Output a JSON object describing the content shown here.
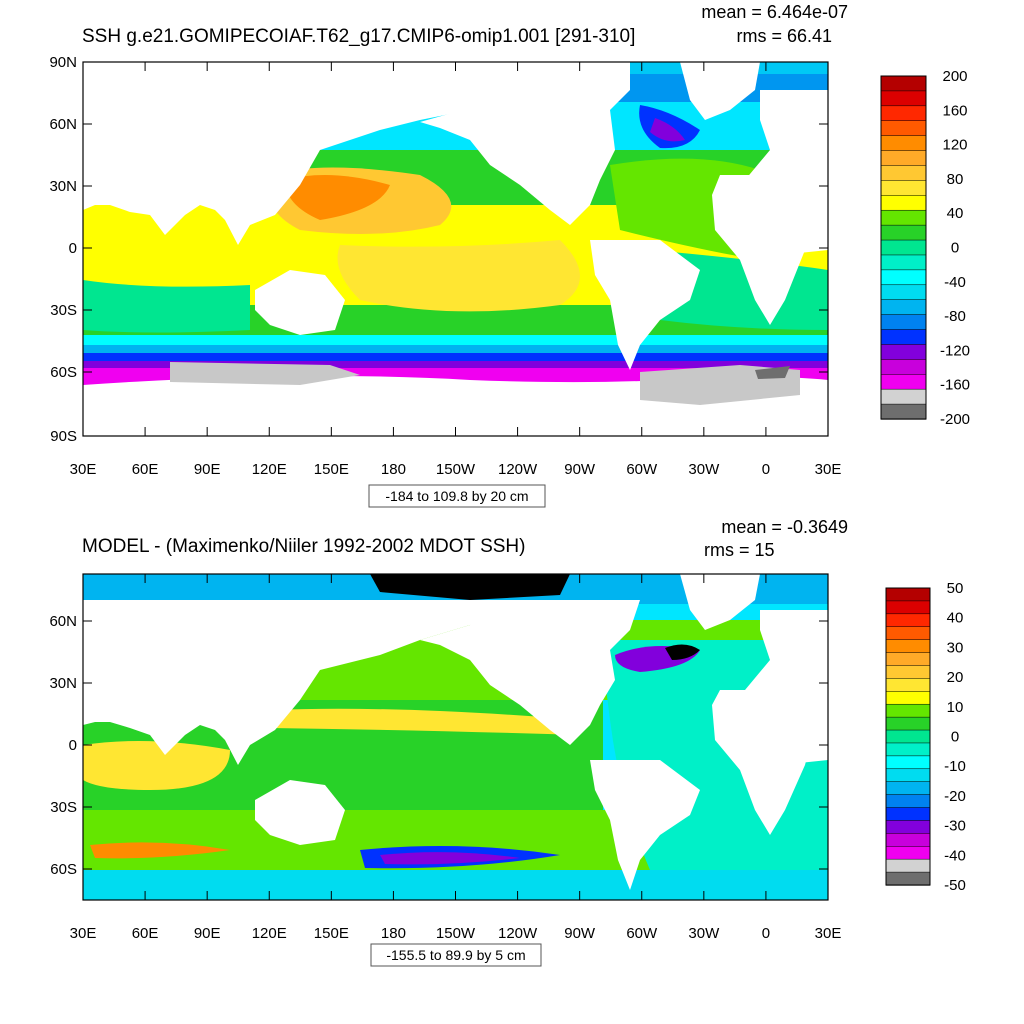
{
  "panels": [
    {
      "title": "SSH g.e21.GOMIPECOIAF.T62_g17.CMIP6-omip1.001 [291-310]",
      "mean_text": "mean = 6.464e-07",
      "rms_text": "rms = 66.41",
      "range_text": "-184 to 109.8 by 20 cm",
      "lat_ticks": [
        "90N",
        "60N",
        "30N",
        "0",
        "30S",
        "60S",
        "90S"
      ],
      "lon_ticks": [
        "30E",
        "60E",
        "90E",
        "120E",
        "150E",
        "180",
        "150W",
        "120W",
        "90W",
        "60W",
        "30W",
        "0",
        "30E"
      ],
      "colorbar": {
        "labels": [
          "200",
          "160",
          "120",
          "80",
          "40",
          "0",
          "-40",
          "-80",
          "-120",
          "-160",
          "-200"
        ],
        "colors": [
          "#b40000",
          "#dc0000",
          "#ff2800",
          "#ff5a00",
          "#ff8c00",
          "#ffaa28",
          "#ffc832",
          "#ffe632",
          "#ffff00",
          "#64e600",
          "#28d228",
          "#00e690",
          "#00f0c8",
          "#00ffff",
          "#00dcf0",
          "#00b4f0",
          "#0082f0",
          "#0032ff",
          "#8200dc",
          "#c800dc",
          "#f000f0",
          "#d2d2d2",
          "#6e6e6e"
        ]
      }
    },
    {
      "title": "MODEL - (Maximenko/Niiler 1992-2002 MDOT SSH)",
      "mean_text": "mean = -0.3649",
      "rms_text": "rms = 15",
      "range_text": "-155.5 to 89.9 by 5 cm",
      "lat_ticks": [
        "60N",
        "30N",
        "0",
        "30S",
        "60S"
      ],
      "lon_ticks": [
        "30E",
        "60E",
        "90E",
        "120E",
        "150E",
        "180",
        "150W",
        "120W",
        "90W",
        "60W",
        "30W",
        "0",
        "30E"
      ],
      "colorbar": {
        "labels": [
          "50",
          "40",
          "30",
          "20",
          "10",
          "0",
          "-10",
          "-20",
          "-30",
          "-40",
          "-50"
        ],
        "colors": [
          "#b40000",
          "#dc0000",
          "#ff2800",
          "#ff5a00",
          "#ff8c00",
          "#ffaa28",
          "#ffc832",
          "#ffe632",
          "#ffff00",
          "#64e600",
          "#28d228",
          "#00e690",
          "#00f0c8",
          "#00ffff",
          "#00dcf0",
          "#00b4f0",
          "#0082f0",
          "#0032ff",
          "#8200dc",
          "#c800dc",
          "#f000f0",
          "#d2d2d2",
          "#6e6e6e"
        ]
      }
    }
  ]
}
